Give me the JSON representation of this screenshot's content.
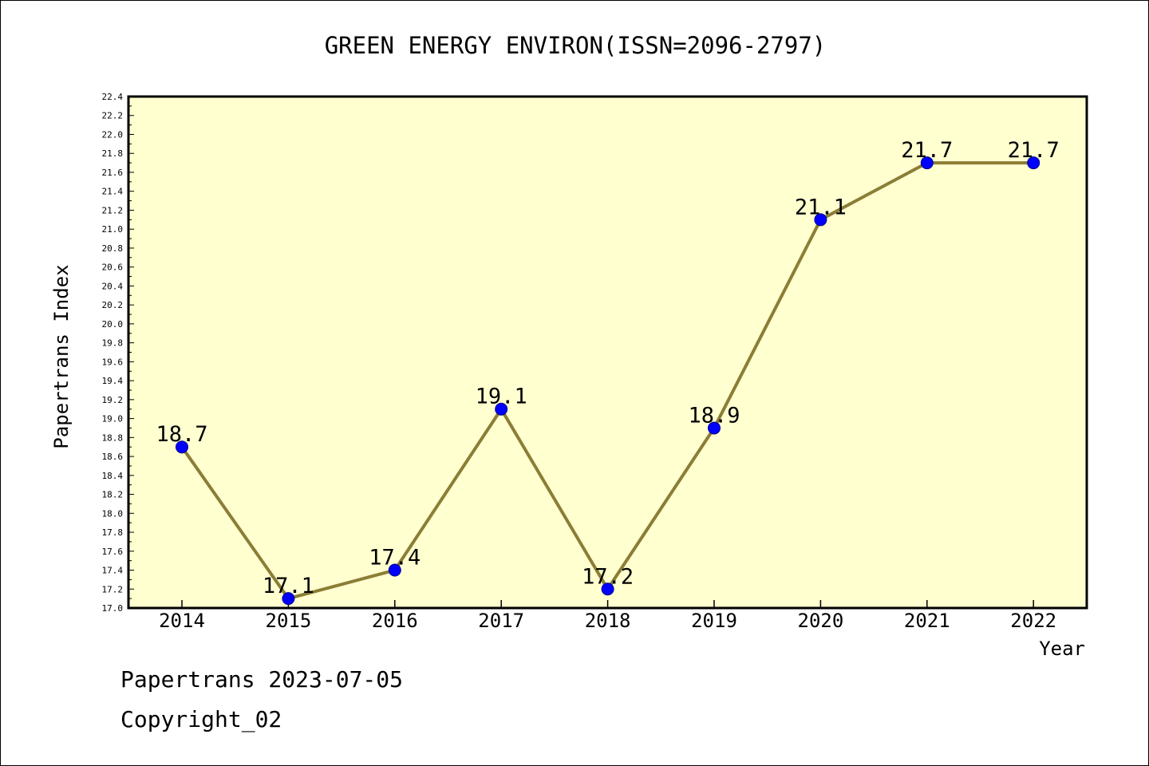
{
  "chart_data": {
    "type": "line",
    "title": "GREEN ENERGY ENVIRON(ISSN=2096-2797)",
    "xlabel": "Year",
    "ylabel": "Papertrans Index",
    "categories": [
      "2014",
      "2015",
      "2016",
      "2017",
      "2018",
      "2019",
      "2020",
      "2021",
      "2022"
    ],
    "series": [
      {
        "values": [
          18.7,
          17.1,
          17.4,
          19.1,
          17.2,
          18.9,
          21.1,
          21.7,
          21.7
        ]
      }
    ],
    "data_labels": [
      "18.7",
      "17.1",
      "17.4",
      "19.1",
      "17.2",
      "18.9",
      "21.1",
      "21.7",
      "21.7"
    ],
    "ylim": [
      17.0,
      22.4
    ],
    "y_ticks": [
      "17.0",
      "17.2",
      "17.4",
      "17.6",
      "17.8",
      "18.0",
      "18.2",
      "18.4",
      "18.6",
      "18.8",
      "19.0",
      "19.2",
      "19.4",
      "19.6",
      "19.8",
      "20.0",
      "20.2",
      "20.4",
      "20.6",
      "20.8",
      "21.0",
      "21.2",
      "21.4",
      "21.6",
      "21.8",
      "22.0",
      "22.2",
      "22.4"
    ],
    "grid": false,
    "colors": {
      "plot_background": "#ffffd0",
      "line": "#8b7d35",
      "marker": "#0000ff",
      "marker_edge": "#00008b"
    }
  },
  "footer": {
    "date_line": "Papertrans 2023-07-05",
    "copyright_line": "Copyright_02"
  }
}
